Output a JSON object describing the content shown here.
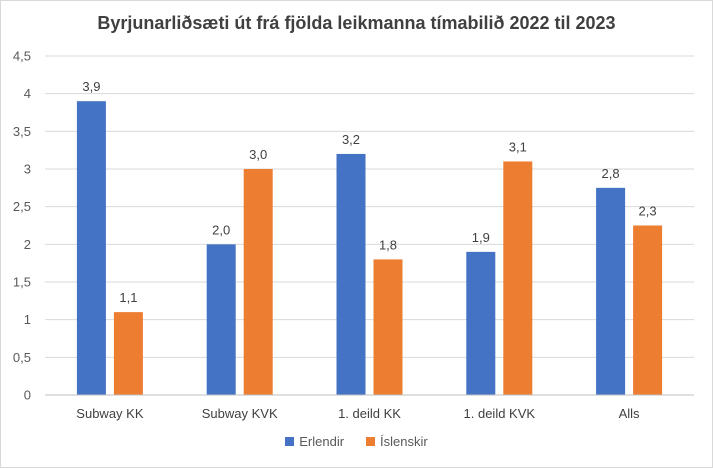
{
  "chart_data": {
    "type": "bar",
    "title": "Byrjunarliðsæti út frá fjölda leikmanna tímabilið 2022 til 2023",
    "xlabel": "",
    "ylabel": "",
    "ylim": [
      0,
      4.5
    ],
    "yticks": [
      "0",
      "0,5",
      "1",
      "1,5",
      "2",
      "2,5",
      "3",
      "3,5",
      "4",
      "4,5"
    ],
    "ytick_values": [
      0,
      0.5,
      1,
      1.5,
      2,
      2.5,
      3,
      3.5,
      4,
      4.5
    ],
    "categories": [
      "Subway KK",
      "Subway KVK",
      "1. deild KK",
      "1. deild KVK",
      "Alls"
    ],
    "series": [
      {
        "name": "Erlendir",
        "color": "#4472c4",
        "values": [
          3.9,
          2.0,
          3.2,
          1.9,
          2.75
        ],
        "labels": [
          "3,9",
          "2,0",
          "3,2",
          "1,9",
          "2,8"
        ]
      },
      {
        "name": "Íslenskir",
        "color": "#ed7d31",
        "values": [
          1.1,
          3.0,
          1.8,
          3.1,
          2.25
        ],
        "labels": [
          "1,1",
          "3,0",
          "1,8",
          "3,1",
          "2,3"
        ]
      }
    ],
    "grid": true,
    "legend_position": "bottom"
  }
}
